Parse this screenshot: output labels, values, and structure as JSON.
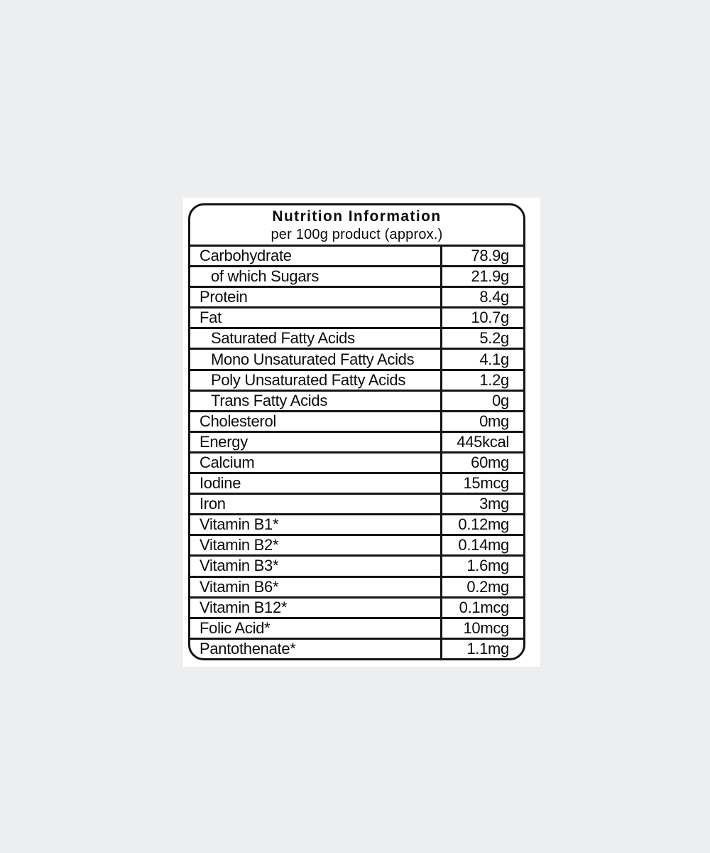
{
  "page": {
    "background_color": "#edeef0",
    "panel_color": "#ffffff",
    "border_color": "#141414",
    "text_color": "#0b0b0b"
  },
  "header": {
    "title": "Nutrition Information",
    "subtitle": "per 100g product (approx.)"
  },
  "table": {
    "rows": [
      {
        "label": "Carbohydrate",
        "value": "78.9g",
        "indent": 0
      },
      {
        "label": "of which Sugars",
        "value": "21.9g",
        "indent": 1
      },
      {
        "label": "Protein",
        "value": "8.4g",
        "indent": 0
      },
      {
        "label": "Fat",
        "value": "10.7g",
        "indent": 0
      },
      {
        "label": "Saturated Fatty Acids",
        "value": "5.2g",
        "indent": 1
      },
      {
        "label": "Mono Unsaturated Fatty Acids",
        "value": "4.1g",
        "indent": 1
      },
      {
        "label": "Poly Unsaturated Fatty Acids",
        "value": "1.2g",
        "indent": 1
      },
      {
        "label": "Trans Fatty Acids",
        "value": "0g",
        "indent": 1
      },
      {
        "label": "Cholesterol",
        "value": "0mg",
        "indent": 0
      },
      {
        "label": "Energy",
        "value": "445kcal",
        "indent": 0
      },
      {
        "label": "Calcium",
        "value": "60mg",
        "indent": 0
      },
      {
        "label": "Iodine",
        "value": "15mcg",
        "indent": 0
      },
      {
        "label": "Iron",
        "value": "3mg",
        "indent": 0
      },
      {
        "label": "Vitamin B1*",
        "value": "0.12mg",
        "indent": 0
      },
      {
        "label": "Vitamin B2*",
        "value": "0.14mg",
        "indent": 0
      },
      {
        "label": "Vitamin B3*",
        "value": "1.6mg",
        "indent": 0
      },
      {
        "label": "Vitamin B6*",
        "value": "0.2mg",
        "indent": 0
      },
      {
        "label": "Vitamin B12*",
        "value": "0.1mcg",
        "indent": 0
      },
      {
        "label": "Folic Acid*",
        "value": "10mcg",
        "indent": 0
      },
      {
        "label": "Pantothenate*",
        "value": "1.1mg",
        "indent": 0
      }
    ]
  }
}
